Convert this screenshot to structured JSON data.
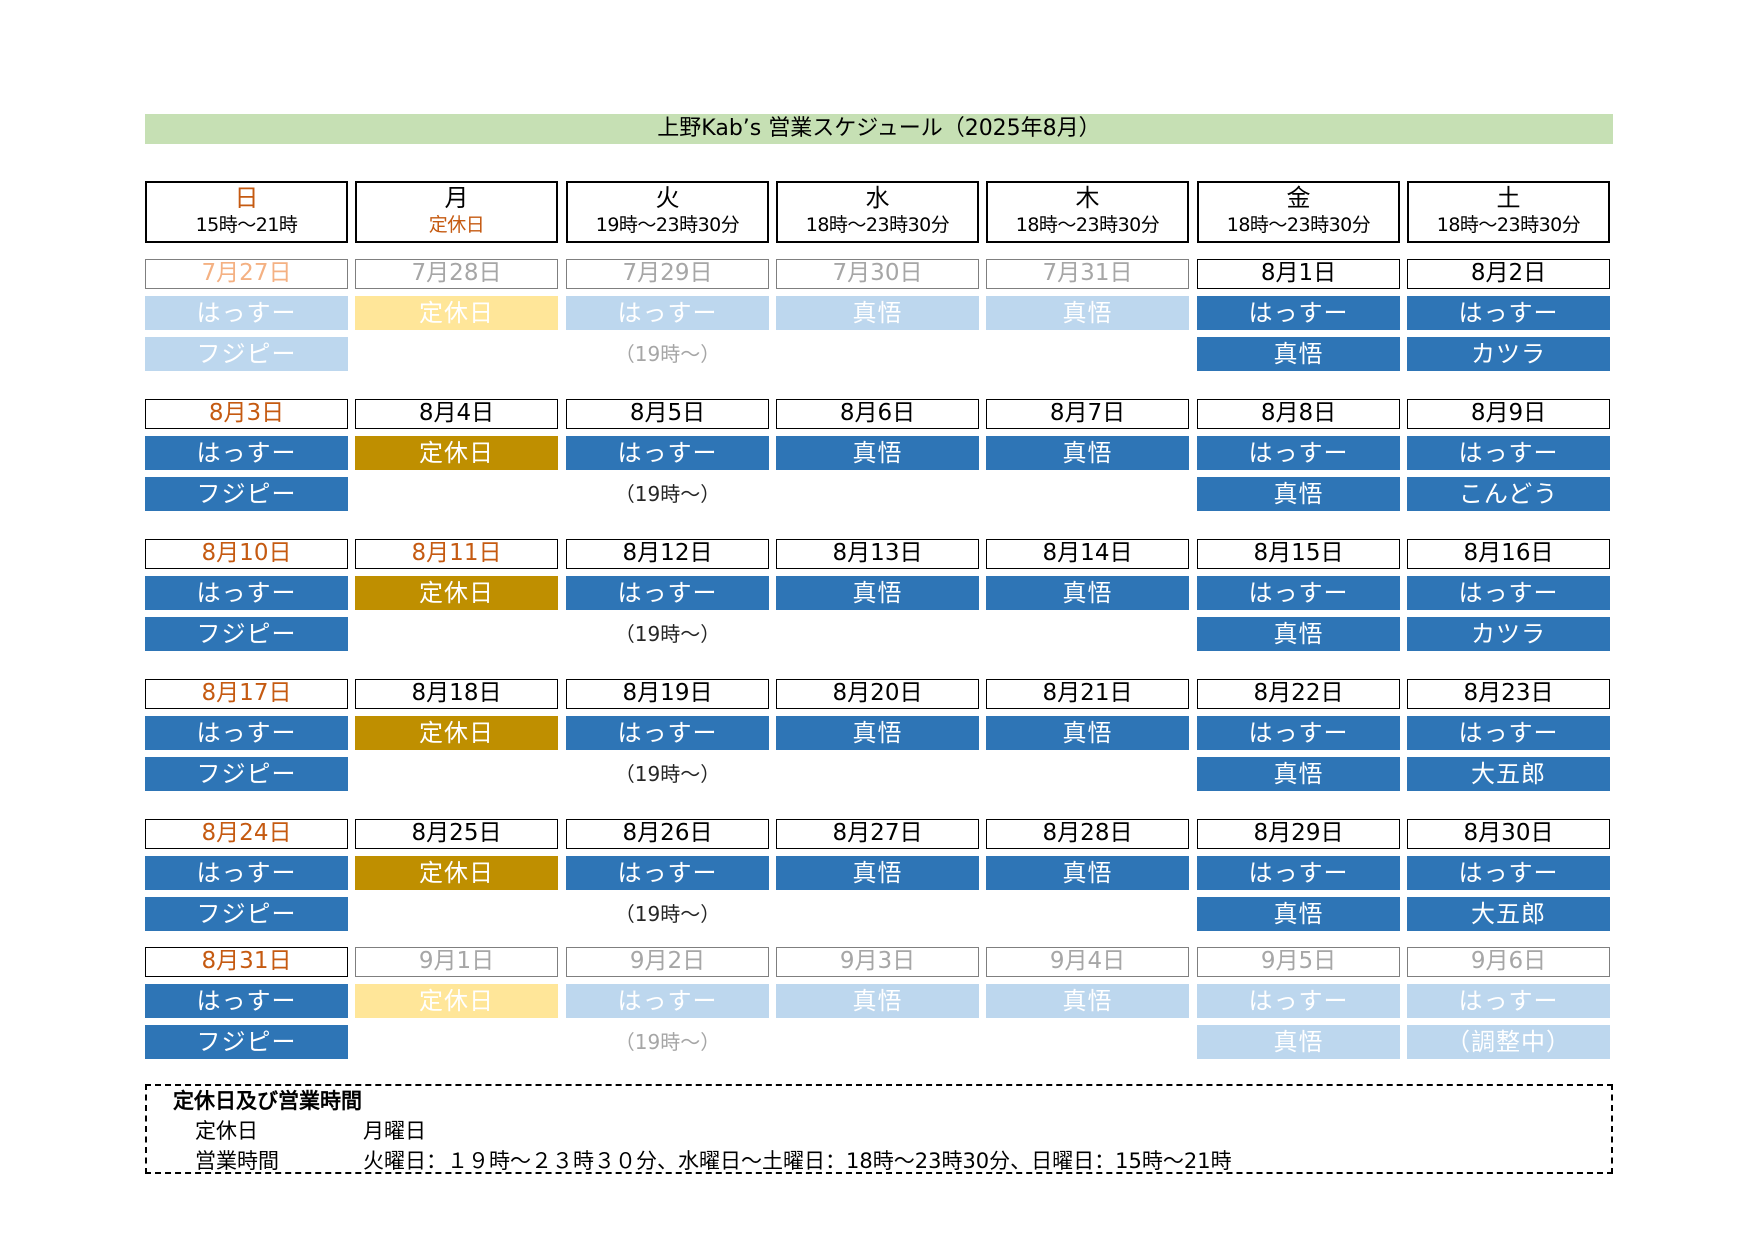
{
  "title": "上野Kab’s 営業スケジュール（2025年8月）",
  "days": [
    {
      "name": "日",
      "hours": "15時〜21時"
    },
    {
      "name": "月",
      "hours": "定休日"
    },
    {
      "name": "火",
      "hours": "19時〜23時30分"
    },
    {
      "name": "水",
      "hours": "18時〜23時30分"
    },
    {
      "name": "木",
      "hours": "18時〜23時30分"
    },
    {
      "name": "金",
      "hours": "18時〜23時30分"
    },
    {
      "name": "土",
      "hours": "18時〜23時30分"
    }
  ],
  "colors": {
    "sun_text": "#c55a11",
    "closed_text": "#c55a11",
    "blue": "#2e75b6",
    "light_blue": "#bdd7ee",
    "gold": "#bf8f00",
    "light_gold": "#ffe699",
    "title_bg": "#c6e0b4"
  },
  "weeks": [
    {
      "dates": [
        "7月27日",
        "7月28日",
        "7月29日",
        "7月30日",
        "7月31日",
        "8月1日",
        "8月2日"
      ],
      "row1": [
        "はっすー",
        "定休日",
        "はっすー",
        "真悟",
        "真悟",
        "はっすー",
        "はっすー"
      ],
      "row2": [
        "フジピー",
        "",
        "（19時〜）",
        "",
        "",
        "真悟",
        "カツラ"
      ]
    },
    {
      "dates": [
        "8月3日",
        "8月4日",
        "8月5日",
        "8月6日",
        "8月7日",
        "8月8日",
        "8月9日"
      ],
      "row1": [
        "はっすー",
        "定休日",
        "はっすー",
        "真悟",
        "真悟",
        "はっすー",
        "はっすー"
      ],
      "row2": [
        "フジピー",
        "",
        "（19時〜）",
        "",
        "",
        "真悟",
        "こんどう"
      ]
    },
    {
      "dates": [
        "8月10日",
        "8月11日",
        "8月12日",
        "8月13日",
        "8月14日",
        "8月15日",
        "8月16日"
      ],
      "row1": [
        "はっすー",
        "定休日",
        "はっすー",
        "真悟",
        "真悟",
        "はっすー",
        "はっすー"
      ],
      "row2": [
        "フジピー",
        "",
        "（19時〜）",
        "",
        "",
        "真悟",
        "カツラ"
      ]
    },
    {
      "dates": [
        "8月17日",
        "8月18日",
        "8月19日",
        "8月20日",
        "8月21日",
        "8月22日",
        "8月23日"
      ],
      "row1": [
        "はっすー",
        "定休日",
        "はっすー",
        "真悟",
        "真悟",
        "はっすー",
        "はっすー"
      ],
      "row2": [
        "フジピー",
        "",
        "（19時〜）",
        "",
        "",
        "真悟",
        "大五郎"
      ]
    },
    {
      "dates": [
        "8月24日",
        "8月25日",
        "8月26日",
        "8月27日",
        "8月28日",
        "8月29日",
        "8月30日"
      ],
      "row1": [
        "はっすー",
        "定休日",
        "はっすー",
        "真悟",
        "真悟",
        "はっすー",
        "はっすー"
      ],
      "row2": [
        "フジピー",
        "",
        "（19時〜）",
        "",
        "",
        "真悟",
        "大五郎"
      ]
    },
    {
      "dates": [
        "8月31日",
        "9月1日",
        "9月2日",
        "9月3日",
        "9月4日",
        "9月5日",
        "9月6日"
      ],
      "row1": [
        "はっすー",
        "定休日",
        "はっすー",
        "真悟",
        "真悟",
        "はっすー",
        "はっすー"
      ],
      "row2": [
        "フジピー",
        "",
        "（19時〜）",
        "",
        "",
        "真悟",
        "（調整中）"
      ]
    }
  ],
  "info": {
    "title": "定休日及び営業時間",
    "closed_label": "定休日",
    "closed_value": "月曜日",
    "hours_label": "営業時間",
    "hours_value": "火曜日：１９時〜２３時３０分、水曜日〜土曜日：18時〜23時30分、日曜日：15時〜21時"
  }
}
